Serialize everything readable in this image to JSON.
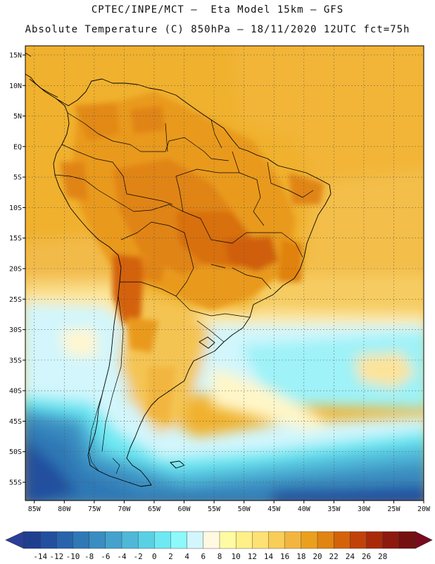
{
  "header": {
    "title_line1": "CPTEC/INPE/MCT –  Eta Model 15km – GFS",
    "title_line2": "Absolute Temperature (C) 850hPa – 18/11/2020 12UTC fct=75h"
  },
  "map": {
    "lat_labels": [
      "15N",
      "10N",
      "5N",
      "EQ",
      "5S",
      "10S",
      "15S",
      "20S",
      "25S",
      "30S",
      "35S",
      "40S",
      "45S",
      "50S",
      "55S"
    ],
    "lat_values": [
      15,
      10,
      5,
      0,
      -5,
      -10,
      -15,
      -20,
      -25,
      -30,
      -35,
      -40,
      -45,
      -50,
      -55
    ],
    "lon_labels": [
      "85W",
      "80W",
      "75W",
      "70W",
      "65W",
      "60W",
      "55W",
      "50W",
      "45W",
      "40W",
      "35W",
      "30W",
      "25W",
      "20W"
    ],
    "lon_values": [
      -85,
      -80,
      -75,
      -70,
      -65,
      -60,
      -55,
      -50,
      -45,
      -40,
      -35,
      -30,
      -25,
      -20
    ],
    "lat_range": [
      -58,
      16.5
    ],
    "lon_range": [
      -86.5,
      -20
    ]
  },
  "colorbar": {
    "labels": [
      "-14",
      "-12",
      "-10",
      "-8",
      "-6",
      "-4",
      "-2",
      "0",
      "2",
      "4",
      "6",
      "8",
      "10",
      "12",
      "14",
      "16",
      "18",
      "20",
      "22",
      "24",
      "26",
      "28"
    ],
    "colors": [
      "#1f3f8e",
      "#22509f",
      "#2864ab",
      "#2f78b6",
      "#3a8dc0",
      "#45a2cc",
      "#4fb8d8",
      "#5ad0e4",
      "#6ee8f2",
      "#8ef8fa",
      "#d2f6fc",
      "#fff9e2",
      "#fffba3",
      "#fff08a",
      "#fee174",
      "#f8cd58",
      "#f2b640",
      "#eaa01e",
      "#e08412",
      "#d4620a",
      "#c0420a",
      "#a82a0a",
      "#8c1a0e",
      "#741010"
    ],
    "low_arrow_color": "#2a3f9a",
    "high_arrow_color": "#7a0a1e"
  },
  "colors": {
    "land_border": "#000000",
    "grid": "#555555"
  }
}
